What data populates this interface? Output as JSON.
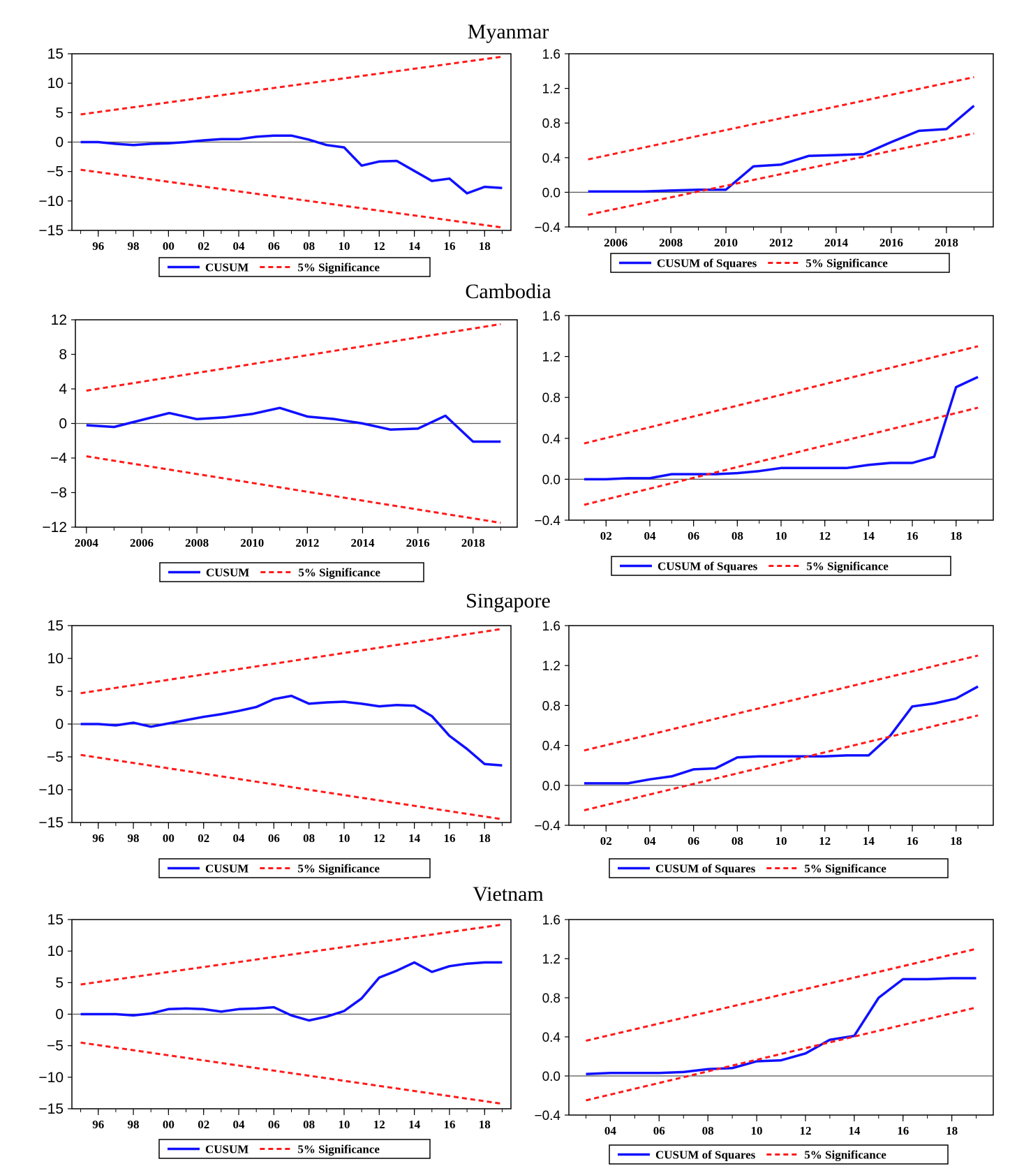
{
  "colors": {
    "cusum": "#1010ff",
    "significance": "#ff1a1a",
    "axis": "#000000",
    "zero": "#555555"
  },
  "legend_labels": {
    "cusum": "CUSUM",
    "cusum_sq": "CUSUM of Squares",
    "significance": "5% Significance"
  },
  "chart_data": [
    {
      "id": "myanmar-cusum",
      "type": "line",
      "section_title": "Myanmar",
      "ylim": [
        -15,
        15
      ],
      "yticks": [
        "15",
        "10",
        "5",
        "0",
        "−5",
        "−10",
        "−15"
      ],
      "xlim": [
        1994.5,
        2019.5
      ],
      "xtick_values": [
        1996,
        1998,
        2000,
        2002,
        2004,
        2006,
        2008,
        2010,
        2012,
        2014,
        2016,
        2018
      ],
      "xtick_labels": [
        "96",
        "98",
        "00",
        "02",
        "04",
        "06",
        "08",
        "10",
        "12",
        "14",
        "16",
        "18"
      ],
      "legend": [
        "CUSUM",
        "5% Significance"
      ],
      "series": [
        {
          "name": "CUSUM",
          "x": [
            1995,
            1996,
            1997,
            1998,
            1999,
            2000,
            2001,
            2002,
            2003,
            2004,
            2005,
            2006,
            2007,
            2008,
            2009,
            2010,
            2011,
            2012,
            2013,
            2014,
            2015,
            2016,
            2017,
            2018,
            2019
          ],
          "values": [
            0,
            0,
            -0.3,
            -0.5,
            -0.3,
            -0.2,
            0,
            0.3,
            0.5,
            0.5,
            0.9,
            1.1,
            1.1,
            0.4,
            -0.5,
            -0.9,
            -4,
            -3.3,
            -3.2,
            -4.9,
            -6.6,
            -6.2,
            -8.7,
            -7.6,
            -7.8
          ]
        },
        {
          "name": "5% Significance (upper)",
          "x": [
            1995,
            2019
          ],
          "values": [
            4.7,
            14.5
          ]
        },
        {
          "name": "5% Significance (lower)",
          "x": [
            1995,
            2019
          ],
          "values": [
            -4.7,
            -14.5
          ]
        }
      ]
    },
    {
      "id": "myanmar-cusumsq",
      "type": "line",
      "ylim": [
        -0.4,
        1.6
      ],
      "yticks": [
        "1.6",
        "1.2",
        "0.8",
        "0.4",
        "0.0",
        "−0.4"
      ],
      "xlim": [
        2004.3,
        2019.7
      ],
      "xtick_values": [
        2006,
        2008,
        2010,
        2012,
        2014,
        2016,
        2018
      ],
      "xtick_labels": [
        "2006",
        "2008",
        "2010",
        "2012",
        "2014",
        "2016",
        "2018"
      ],
      "legend": [
        "CUSUM of Squares",
        "5% Significance"
      ],
      "series": [
        {
          "name": "CUSUM of Squares",
          "x": [
            2005,
            2006,
            2007,
            2008,
            2009,
            2010,
            2011,
            2012,
            2013,
            2014,
            2015,
            2016,
            2017,
            2018,
            2019
          ],
          "values": [
            0.01,
            0.01,
            0.01,
            0.02,
            0.03,
            0.03,
            0.3,
            0.32,
            0.42,
            0.43,
            0.44,
            0.58,
            0.71,
            0.73,
            1.0
          ]
        },
        {
          "name": "5% Significance (upper)",
          "x": [
            2005,
            2019
          ],
          "values": [
            0.38,
            1.33
          ]
        },
        {
          "name": "5% Significance (lower)",
          "x": [
            2005,
            2019
          ],
          "values": [
            -0.26,
            0.68
          ]
        }
      ]
    },
    {
      "id": "cambodia-cusum",
      "type": "line",
      "section_title": "Cambodia",
      "ylim": [
        -12,
        12
      ],
      "yticks": [
        "12",
        "8",
        "4",
        "0",
        "−4",
        "−8",
        "−12"
      ],
      "xlim": [
        2003.6,
        2019.6
      ],
      "xtick_values": [
        2004,
        2006,
        2008,
        2010,
        2012,
        2014,
        2016,
        2018
      ],
      "xtick_labels": [
        "2004",
        "2006",
        "2008",
        "2010",
        "2012",
        "2014",
        "2016",
        "2018"
      ],
      "legend": [
        "CUSUM",
        "5% Significance"
      ],
      "series": [
        {
          "name": "CUSUM",
          "x": [
            2004,
            2005,
            2006,
            2007,
            2008,
            2009,
            2010,
            2011,
            2012,
            2013,
            2014,
            2015,
            2016,
            2017,
            2018,
            2019
          ],
          "values": [
            -0.2,
            -0.4,
            0.4,
            1.2,
            0.5,
            0.7,
            1.1,
            1.8,
            0.8,
            0.5,
            0,
            -0.7,
            -0.6,
            0.9,
            -2.1,
            -2.1
          ]
        },
        {
          "name": "5% Significance (upper)",
          "x": [
            2004,
            2019
          ],
          "values": [
            3.8,
            11.5
          ]
        },
        {
          "name": "5% Significance (lower)",
          "x": [
            2004,
            2019
          ],
          "values": [
            -3.8,
            -11.5
          ]
        }
      ]
    },
    {
      "id": "cambodia-cusumsq",
      "type": "line",
      "ylim": [
        -0.4,
        1.6
      ],
      "yticks": [
        "1.6",
        "1.2",
        "0.8",
        "0.4",
        "0.0",
        "−0.4"
      ],
      "xlim": [
        2000.3,
        2019.7
      ],
      "xtick_values": [
        2002,
        2004,
        2006,
        2008,
        2010,
        2012,
        2014,
        2016,
        2018
      ],
      "xtick_labels": [
        "02",
        "04",
        "06",
        "08",
        "10",
        "12",
        "14",
        "16",
        "18"
      ],
      "legend": [
        "CUSUM of Squares",
        "5% Significance"
      ],
      "series": [
        {
          "name": "CUSUM of Squares",
          "x": [
            2001,
            2002,
            2003,
            2004,
            2005,
            2006,
            2007,
            2008,
            2009,
            2010,
            2011,
            2012,
            2013,
            2014,
            2015,
            2016,
            2017,
            2018,
            2019
          ],
          "values": [
            0,
            0,
            0.01,
            0.01,
            0.05,
            0.05,
            0.05,
            0.06,
            0.08,
            0.11,
            0.11,
            0.11,
            0.11,
            0.14,
            0.16,
            0.16,
            0.22,
            0.9,
            1.0
          ]
        },
        {
          "name": "5% Significance (upper)",
          "x": [
            2001,
            2019
          ],
          "values": [
            0.35,
            1.3
          ]
        },
        {
          "name": "5% Significance (lower)",
          "x": [
            2001,
            2019
          ],
          "values": [
            -0.25,
            0.7
          ]
        }
      ]
    },
    {
      "id": "singapore-cusum",
      "type": "line",
      "section_title": "Singapore",
      "ylim": [
        -15,
        15
      ],
      "yticks": [
        "15",
        "10",
        "5",
        "0",
        "−5",
        "−10",
        "−15"
      ],
      "xlim": [
        1994.5,
        2019.5
      ],
      "xtick_values": [
        1996,
        1998,
        2000,
        2002,
        2004,
        2006,
        2008,
        2010,
        2012,
        2014,
        2016,
        2018
      ],
      "xtick_labels": [
        "96",
        "98",
        "00",
        "02",
        "04",
        "06",
        "08",
        "10",
        "12",
        "14",
        "16",
        "18"
      ],
      "legend": [
        "CUSUM",
        "5% Significance"
      ],
      "series": [
        {
          "name": "CUSUM",
          "x": [
            1995,
            1996,
            1997,
            1998,
            1999,
            2000,
            2001,
            2002,
            2003,
            2004,
            2005,
            2006,
            2007,
            2008,
            2009,
            2010,
            2011,
            2012,
            2013,
            2014,
            2015,
            2016,
            2017,
            2018,
            2019
          ],
          "values": [
            0,
            0,
            -0.2,
            0.2,
            -0.4,
            0.1,
            0.6,
            1.1,
            1.5,
            2,
            2.6,
            3.8,
            4.3,
            3.1,
            3.3,
            3.4,
            3.1,
            2.7,
            2.9,
            2.8,
            1.2,
            -1.8,
            -3.8,
            -6.1,
            -6.3
          ]
        },
        {
          "name": "5% Significance (upper)",
          "x": [
            1995,
            2019
          ],
          "values": [
            4.7,
            14.5
          ]
        },
        {
          "name": "5% Significance (lower)",
          "x": [
            1995,
            2019
          ],
          "values": [
            -4.7,
            -14.5
          ]
        }
      ]
    },
    {
      "id": "singapore-cusumsq",
      "type": "line",
      "ylim": [
        -0.4,
        1.6
      ],
      "yticks": [
        "1.6",
        "1.2",
        "0.8",
        "0.4",
        "0.0",
        "−0.4"
      ],
      "xlim": [
        2000.3,
        2019.7
      ],
      "xtick_values": [
        2002,
        2004,
        2006,
        2008,
        2010,
        2012,
        2014,
        2016,
        2018
      ],
      "xtick_labels": [
        "02",
        "04",
        "06",
        "08",
        "10",
        "12",
        "14",
        "16",
        "18"
      ],
      "legend": [
        "CUSUM of Squares",
        "5% Significance"
      ],
      "series": [
        {
          "name": "CUSUM of Squares",
          "x": [
            2001,
            2002,
            2003,
            2004,
            2005,
            2006,
            2007,
            2008,
            2009,
            2010,
            2011,
            2012,
            2013,
            2014,
            2015,
            2016,
            2017,
            2018,
            2019
          ],
          "values": [
            0.02,
            0.02,
            0.02,
            0.06,
            0.09,
            0.16,
            0.17,
            0.28,
            0.29,
            0.29,
            0.29,
            0.29,
            0.3,
            0.3,
            0.5,
            0.79,
            0.82,
            0.87,
            0.99
          ]
        },
        {
          "name": "5% Significance (upper)",
          "x": [
            2001,
            2019
          ],
          "values": [
            0.35,
            1.3
          ]
        },
        {
          "name": "5% Significance (lower)",
          "x": [
            2001,
            2019
          ],
          "values": [
            -0.25,
            0.7
          ]
        }
      ]
    },
    {
      "id": "vietnam-cusum",
      "type": "line",
      "section_title": "Vietnam",
      "ylim": [
        -15,
        15
      ],
      "yticks": [
        "15",
        "10",
        "5",
        "0",
        "−5",
        "−10",
        "−15"
      ],
      "xlim": [
        1994.5,
        2019.5
      ],
      "xtick_values": [
        1996,
        1998,
        2000,
        2002,
        2004,
        2006,
        2008,
        2010,
        2012,
        2014,
        2016,
        2018
      ],
      "xtick_labels": [
        "96",
        "98",
        "00",
        "02",
        "04",
        "06",
        "08",
        "10",
        "12",
        "14",
        "16",
        "18"
      ],
      "legend": [
        "CUSUM",
        "5% Significance"
      ],
      "series": [
        {
          "name": "CUSUM",
          "x": [
            1995,
            1996,
            1997,
            1998,
            1999,
            2000,
            2001,
            2002,
            2003,
            2004,
            2005,
            2006,
            2007,
            2008,
            2009,
            2010,
            2011,
            2012,
            2013,
            2014,
            2015,
            2016,
            2017,
            2018,
            2019
          ],
          "values": [
            0,
            0,
            0,
            -0.2,
            0.1,
            0.8,
            0.9,
            0.8,
            0.4,
            0.8,
            0.9,
            1.1,
            -0.2,
            -1,
            -0.4,
            0.5,
            2.5,
            5.8,
            6.9,
            8.2,
            6.7,
            7.6,
            8,
            8.2,
            8.2
          ]
        },
        {
          "name": "5% Significance (upper)",
          "x": [
            1995,
            2019
          ],
          "values": [
            4.7,
            14.2
          ]
        },
        {
          "name": "5% Significance (lower)",
          "x": [
            1995,
            2019
          ],
          "values": [
            -4.5,
            -14.2
          ]
        }
      ]
    },
    {
      "id": "vietnam-cusumsq",
      "type": "line",
      "ylim": [
        -0.4,
        1.6
      ],
      "yticks": [
        "1.6",
        "1.2",
        "0.8",
        "0.4",
        "0.0",
        "−0.4"
      ],
      "xlim": [
        2002.3,
        2019.7
      ],
      "xtick_values": [
        2004,
        2006,
        2008,
        2010,
        2012,
        2014,
        2016,
        2018
      ],
      "xtick_labels": [
        "04",
        "06",
        "08",
        "10",
        "12",
        "14",
        "16",
        "18"
      ],
      "legend": [
        "CUSUM of Squares",
        "5% Significance"
      ],
      "series": [
        {
          "name": "CUSUM of Squares",
          "x": [
            2003,
            2004,
            2005,
            2006,
            2007,
            2008,
            2009,
            2010,
            2011,
            2012,
            2013,
            2014,
            2015,
            2016,
            2017,
            2018,
            2019
          ],
          "values": [
            0.02,
            0.03,
            0.03,
            0.03,
            0.04,
            0.07,
            0.08,
            0.15,
            0.16,
            0.23,
            0.37,
            0.41,
            0.8,
            0.99,
            0.99,
            1.0,
            1.0
          ]
        },
        {
          "name": "5% Significance (upper)",
          "x": [
            2003,
            2019
          ],
          "values": [
            0.36,
            1.3
          ]
        },
        {
          "name": "5% Significance (lower)",
          "x": [
            2003,
            2019
          ],
          "values": [
            -0.25,
            0.7
          ]
        }
      ]
    }
  ]
}
